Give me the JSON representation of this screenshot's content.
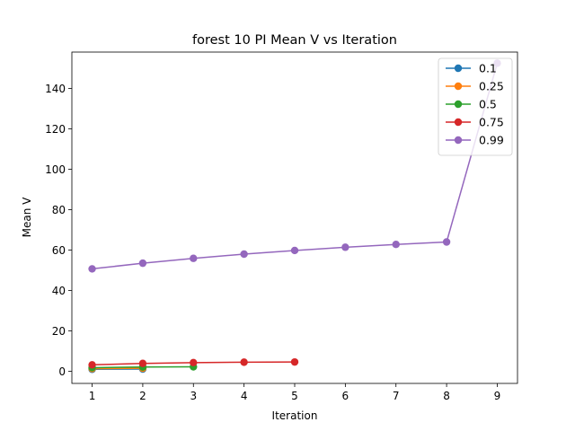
{
  "chart_data": {
    "type": "line",
    "title": "forest 10 PI Mean V vs Iteration",
    "xlabel": "Iteration",
    "ylabel": "Mean V",
    "xlim": [
      0.6,
      9.4
    ],
    "ylim": [
      -6,
      158
    ],
    "xticks": [
      1,
      2,
      3,
      4,
      5,
      6,
      7,
      8,
      9
    ],
    "yticks": [
      0,
      20,
      40,
      60,
      80,
      100,
      120,
      140
    ],
    "legend_position": "top-right",
    "grid": false,
    "series": [
      {
        "name": "0.1",
        "color": "#1f77b4",
        "x": [
          1,
          2
        ],
        "y": [
          1.0,
          1.1
        ]
      },
      {
        "name": "0.25",
        "color": "#ff7f0e",
        "x": [
          1,
          2
        ],
        "y": [
          1.3,
          1.5
        ]
      },
      {
        "name": "0.5",
        "color": "#2ca02c",
        "x": [
          1,
          2,
          3
        ],
        "y": [
          1.8,
          2.1,
          2.2
        ]
      },
      {
        "name": "0.75",
        "color": "#d62728",
        "x": [
          1,
          2,
          3,
          4,
          5
        ],
        "y": [
          3.2,
          3.9,
          4.3,
          4.5,
          4.6
        ]
      },
      {
        "name": "0.99",
        "color": "#9467bd",
        "x": [
          1,
          2,
          3,
          4,
          5,
          6,
          7,
          8,
          9
        ],
        "y": [
          50.7,
          53.5,
          55.9,
          58.0,
          59.8,
          61.4,
          62.8,
          64.0,
          152.5
        ]
      }
    ]
  }
}
